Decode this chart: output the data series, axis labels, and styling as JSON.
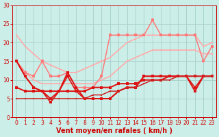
{
  "background_color": "#cceee8",
  "grid_color": "#aad4ce",
  "xlabel": "Vent moyen/en rafales ( km/h )",
  "xlim": [
    -0.5,
    23.5
  ],
  "ylim": [
    0,
    30
  ],
  "yticks": [
    0,
    5,
    10,
    15,
    20,
    25,
    30
  ],
  "xticks": [
    0,
    1,
    2,
    3,
    4,
    5,
    6,
    7,
    8,
    9,
    10,
    11,
    12,
    13,
    14,
    15,
    16,
    17,
    18,
    19,
    20,
    21,
    22,
    23
  ],
  "series": [
    {
      "x": [
        0,
        1,
        2,
        3,
        4,
        5,
        6,
        7,
        8,
        9,
        10,
        11,
        12,
        13,
        14,
        15,
        16,
        17,
        18,
        19,
        20,
        21,
        22,
        23
      ],
      "y": [
        22,
        19,
        17,
        15,
        14,
        13,
        12,
        12,
        13,
        14,
        15,
        16,
        18,
        20,
        21,
        22,
        22,
        22,
        22,
        22,
        22,
        22,
        19,
        20
      ],
      "color": "#ffaaaa",
      "lw": 1.2,
      "marker": "s",
      "ms": 2.0
    },
    {
      "x": [
        0,
        1,
        2,
        3,
        4,
        5,
        6,
        7,
        8,
        9,
        10,
        11,
        12,
        13,
        14,
        15,
        16,
        17,
        18,
        19,
        20,
        21,
        22,
        23
      ],
      "y": [
        15,
        12,
        10,
        9,
        9,
        9,
        9,
        9,
        9,
        9,
        10,
        11,
        13,
        15,
        16,
        17,
        18,
        18,
        18,
        18,
        18,
        18,
        17,
        17
      ],
      "color": "#ffaaaa",
      "lw": 1.2,
      "marker": "s",
      "ms": 2.0
    },
    {
      "x": [
        0,
        1,
        2,
        3,
        4,
        5,
        6,
        7,
        8,
        9,
        10,
        11,
        12,
        13,
        14,
        15,
        16,
        17,
        18,
        19,
        20,
        21,
        22,
        23
      ],
      "y": [
        15,
        12,
        11,
        15,
        11,
        11,
        12,
        8,
        8,
        8,
        11,
        22,
        22,
        22,
        22,
        22,
        26,
        22,
        22,
        22,
        22,
        22,
        15,
        19
      ],
      "color": "#ff7777",
      "lw": 1.1,
      "marker": "s",
      "ms": 2.2
    },
    {
      "x": [
        0,
        1,
        2,
        3,
        4,
        5,
        6,
        7,
        8,
        9,
        10,
        11,
        12,
        13,
        14,
        15,
        16,
        17,
        18,
        19,
        20,
        21,
        22,
        23
      ],
      "y": [
        15,
        11,
        8,
        7,
        4,
        7,
        11,
        7,
        5,
        5,
        5,
        5,
        7,
        8,
        8,
        11,
        11,
        11,
        11,
        11,
        11,
        8,
        11,
        11
      ],
      "color": "#dd1111",
      "lw": 1.2,
      "marker": "s",
      "ms": 2.2
    },
    {
      "x": [
        0,
        1,
        2,
        3,
        4,
        5,
        6,
        7,
        8,
        9,
        10,
        11,
        12,
        13,
        14,
        15,
        16,
        17,
        18,
        19,
        20,
        21,
        22,
        23
      ],
      "y": [
        15,
        11,
        8,
        7,
        5,
        7,
        12,
        8,
        5,
        5,
        5,
        5,
        7,
        8,
        8,
        11,
        11,
        11,
        11,
        11,
        11,
        7,
        11,
        11
      ],
      "color": "#dd1111",
      "lw": 1.4,
      "marker": "s",
      "ms": 2.2
    },
    {
      "x": [
        0,
        1,
        2,
        3,
        4,
        5,
        6,
        7,
        8,
        9,
        10,
        11,
        12,
        13,
        14,
        15,
        16,
        17,
        18,
        19,
        20,
        21,
        22,
        23
      ],
      "y": [
        8,
        7,
        7,
        7,
        7,
        7,
        7,
        7,
        7,
        8,
        8,
        8,
        9,
        9,
        9,
        10,
        10,
        10,
        11,
        11,
        11,
        11,
        11,
        11
      ],
      "color": "#dd1111",
      "lw": 1.4,
      "marker": "s",
      "ms": 2.2
    },
    {
      "x": [
        0,
        1,
        2,
        3,
        4,
        5,
        6,
        7,
        8,
        9,
        10,
        11,
        12,
        13,
        14,
        15,
        16,
        17,
        18,
        19,
        20,
        21,
        22,
        23
      ],
      "y": [
        5,
        5,
        5,
        5,
        5,
        5,
        5,
        5,
        5,
        6,
        6,
        7,
        7,
        8,
        8,
        9,
        10,
        10,
        10,
        11,
        11,
        11,
        11,
        11
      ],
      "color": "#cc2222",
      "lw": 1.1,
      "marker": "s",
      "ms": 2.0
    }
  ],
  "xlabel_color": "#cc0000",
  "tick_color": "#cc0000",
  "axis_label_fontsize": 7,
  "tick_fontsize": 5.5
}
